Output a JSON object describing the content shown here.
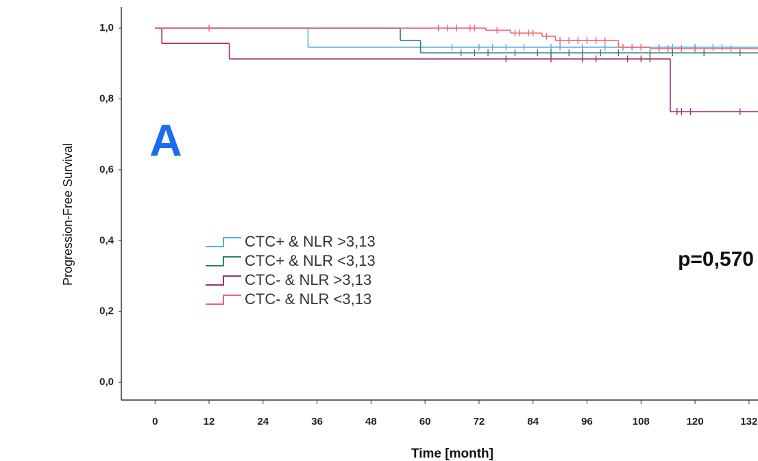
{
  "chart_data": {
    "type": "step",
    "xlabel": "Time [month]",
    "ylabel": "Progression-Free Survival",
    "annotations": [
      "A",
      "p=0,570"
    ],
    "xlim": [
      -7.5,
      134
    ],
    "ylim": [
      -0.05,
      1.06
    ],
    "xticks": [
      0,
      12,
      24,
      36,
      48,
      60,
      72,
      84,
      96,
      108,
      120,
      132
    ],
    "yticks": [
      {
        "value": 0,
        "label": "0,0"
      },
      {
        "value": 0.2,
        "label": "0,2"
      },
      {
        "value": 0.4,
        "label": "0,4"
      },
      {
        "value": 0.6,
        "label": "0,6"
      },
      {
        "value": 0.8,
        "label": "0,8"
      },
      {
        "value": 1,
        "label": "1,0"
      }
    ],
    "series": [
      {
        "name": "CTC+ & NLR >3,13",
        "color": "#5aaee0",
        "x": [
          0,
          34
        ],
        "values": [
          1,
          0.946
        ],
        "censored": {
          "x": [
            66,
            72,
            75,
            78,
            82,
            88,
            90,
            95,
            100,
            108,
            112,
            115,
            120,
            124,
            126
          ],
          "values": [
            0.946,
            0.946,
            0.946,
            0.946,
            0.946,
            0.946,
            0.946,
            0.946,
            0.946,
            0.946,
            0.946,
            0.946,
            0.946,
            0.946,
            0.946
          ]
        }
      },
      {
        "name": "CTC+ & NLR <3,13",
        "color": "#2e7d72",
        "x": [
          0,
          54.5,
          59
        ],
        "values": [
          1,
          0.965,
          0.93
        ],
        "censored": {
          "x": [
            68,
            71,
            74,
            80,
            85,
            88,
            92,
            95,
            99,
            103,
            110,
            115,
            122,
            130
          ],
          "values": [
            0.93,
            0.93,
            0.93,
            0.93,
            0.93,
            0.93,
            0.93,
            0.93,
            0.93,
            0.93,
            0.93,
            0.93,
            0.93,
            0.93
          ]
        }
      },
      {
        "name": "CTC- & NLR >3,13",
        "color": "#a0306a",
        "x": [
          0,
          1.5,
          16.5,
          114.5
        ],
        "values": [
          1,
          0.957,
          0.913,
          0.764
        ],
        "censored": {
          "x": [
            78,
            88,
            95,
            98,
            105,
            108,
            110,
            116,
            117,
            119,
            130
          ],
          "values": [
            0.913,
            0.913,
            0.913,
            0.913,
            0.913,
            0.913,
            0.913,
            0.764,
            0.764,
            0.764,
            0.764
          ]
        }
      },
      {
        "name": "CTC- & NLR <3,13",
        "color": "#f06070",
        "x": [
          0,
          73.5,
          79,
          86,
          89,
          103,
          110
        ],
        "values": [
          1,
          0.994,
          0.986,
          0.977,
          0.965,
          0.946,
          0.942
        ],
        "censored": {
          "x": [
            12,
            63,
            65,
            67,
            70,
            71,
            76,
            80,
            81,
            83,
            84,
            87,
            90,
            92,
            94,
            96,
            98,
            100,
            104,
            106,
            108,
            112,
            114,
            117,
            120,
            128
          ],
          "values": [
            1,
            1,
            1,
            1,
            1,
            1,
            0.994,
            0.986,
            0.986,
            0.986,
            0.986,
            0.977,
            0.965,
            0.965,
            0.965,
            0.965,
            0.965,
            0.965,
            0.946,
            0.946,
            0.946,
            0.942,
            0.942,
            0.942,
            0.942,
            0.942
          ]
        }
      }
    ]
  }
}
